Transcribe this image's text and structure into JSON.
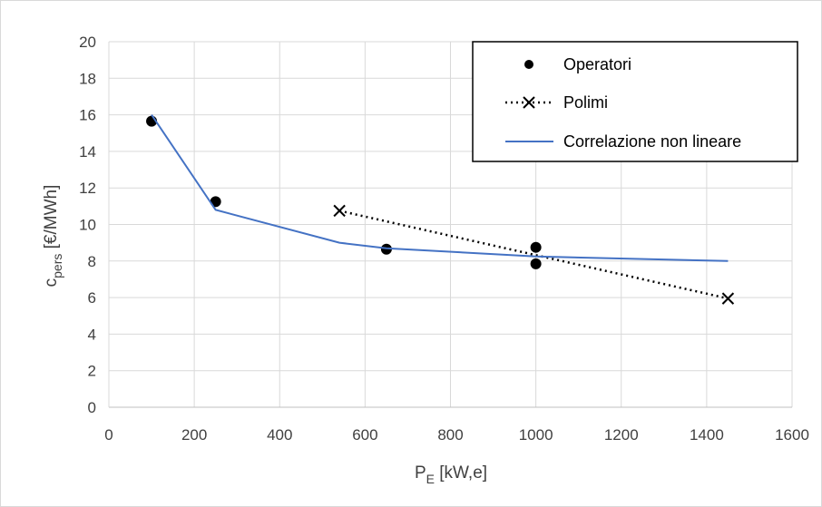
{
  "chart_data": {
    "type": "scatter",
    "xlabel": {
      "main": "P",
      "sub": "E",
      "rest": " [kW,e]"
    },
    "ylabel": {
      "main": "c",
      "sub": "pers",
      "rest": " [€/MWh]"
    },
    "xlim": [
      0,
      1600
    ],
    "ylim": [
      0,
      20
    ],
    "x_ticks": [
      0,
      200,
      400,
      600,
      800,
      1000,
      1200,
      1400,
      1600
    ],
    "y_ticks": [
      0,
      2,
      4,
      6,
      8,
      10,
      12,
      14,
      16,
      18,
      20
    ],
    "grid": true,
    "legend_position": "top-right",
    "series": [
      {
        "name": "Operatori",
        "style": "markers",
        "color": "#000000",
        "points": [
          [
            100,
            15.65
          ],
          [
            250,
            11.25
          ],
          [
            650,
            8.65
          ],
          [
            1000,
            8.75
          ],
          [
            1000,
            7.85
          ]
        ]
      },
      {
        "name": "Polimi",
        "style": "dotted-cross",
        "color": "#000000",
        "points": [
          [
            540,
            10.75
          ],
          [
            1450,
            5.95
          ]
        ]
      },
      {
        "name": "Correlazione non lineare",
        "style": "line",
        "color": "#4472c4",
        "points": [
          [
            100,
            16.0
          ],
          [
            250,
            10.8
          ],
          [
            540,
            9.0
          ],
          [
            650,
            8.7
          ],
          [
            1000,
            8.25
          ],
          [
            1450,
            8.0
          ]
        ]
      }
    ]
  }
}
